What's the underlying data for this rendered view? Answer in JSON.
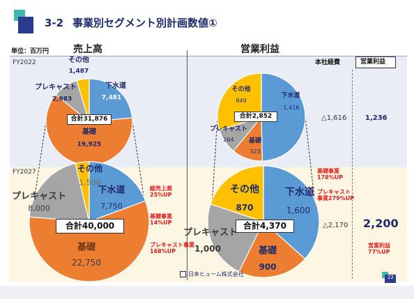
{
  "header": {
    "number": "3-2",
    "title": "事業別セグメント別計画数値①",
    "unit": "単位：百万円"
  },
  "columns": {
    "sales": "売上高",
    "profit": "営業利益",
    "hq_expense": "本社経費",
    "op_profit": "営業利益"
  },
  "rows": {
    "fy2022": "FY2022",
    "fy2027": "FY2027"
  },
  "colors": {
    "sewer": "#5b9bd5",
    "foundation": "#ed7d31",
    "precast": "#a5a5a5",
    "other": "#ffc000",
    "accent_navy": "#1f2a6b",
    "red": "#e01b1b"
  },
  "chart_data": [
    {
      "type": "pie",
      "name": "sales_fy2022",
      "total_label": "合計31,876",
      "slices": [
        {
          "label": "下水道",
          "value": 7481,
          "value_label": "7,481",
          "color": "#5b9bd5"
        },
        {
          "label": "基礎",
          "value": 19925,
          "value_label": "19,925",
          "color": "#ed7d31"
        },
        {
          "label": "プレキャスト",
          "value": 2983,
          "value_label": "2,983",
          "color": "#a5a5a5"
        },
        {
          "label": "その他",
          "value": 1487,
          "value_label": "1,487",
          "color": "#ffc000"
        }
      ]
    },
    {
      "type": "pie",
      "name": "sales_fy2027",
      "total_label": "合計40,000",
      "slices": [
        {
          "label": "下水道",
          "value": 7750,
          "value_label": "7,750",
          "color": "#5b9bd5"
        },
        {
          "label": "基礎",
          "value": 22750,
          "value_label": "22,750",
          "color": "#ed7d31"
        },
        {
          "label": "プレキャスト",
          "value": 8000,
          "value_label": "8,000",
          "color": "#a5a5a5"
        },
        {
          "label": "その他",
          "value": 1500,
          "value_label": "1,500",
          "color": "#ffc000"
        }
      ]
    },
    {
      "type": "pie",
      "name": "profit_fy2022",
      "total_label": "合計2,852",
      "slices": [
        {
          "label": "下水道",
          "value": 1416,
          "value_label": "1,416",
          "color": "#5b9bd5"
        },
        {
          "label": "基礎",
          "value": 323,
          "value_label": "323",
          "color": "#ed7d31"
        },
        {
          "label": "プレキャスト",
          "value": 264,
          "value_label": "264",
          "color": "#a5a5a5"
        },
        {
          "label": "その他",
          "value": 849,
          "value_label": "849",
          "color": "#ffc000"
        }
      ]
    },
    {
      "type": "pie",
      "name": "profit_fy2027",
      "total_label": "合計4,370",
      "slices": [
        {
          "label": "下水道",
          "value": 1600,
          "value_label": "1,600",
          "color": "#5b9bd5"
        },
        {
          "label": "基礎",
          "value": 900,
          "value_label": "900",
          "color": "#ed7d31"
        },
        {
          "label": "プレキャスト",
          "value": 1000,
          "value_label": "1,000",
          "color": "#a5a5a5"
        },
        {
          "label": "その他",
          "value": 870,
          "value_label": "870",
          "color": "#ffc000"
        }
      ]
    }
  ],
  "summary": {
    "fy2022_hq": "△1,616",
    "fy2022_op": "1,236",
    "fy2027_hq": "△2,170",
    "fy2027_op": "2,200"
  },
  "annotations": {
    "total_sales": [
      "総売上高",
      "25%UP"
    ],
    "foundation_sales": [
      "基礎事業",
      "14%UP"
    ],
    "precast_sales": [
      "プレキャスト事業",
      "168%UP"
    ],
    "foundation_profit": [
      "基礎事業",
      "178%UP"
    ],
    "precast_profit": [
      "プレキャスト",
      "事業279%UP"
    ],
    "op_profit": [
      "営業利益",
      "77%UP"
    ]
  },
  "footer": {
    "company": "日本ヒューム株式会社",
    "page": "22"
  }
}
